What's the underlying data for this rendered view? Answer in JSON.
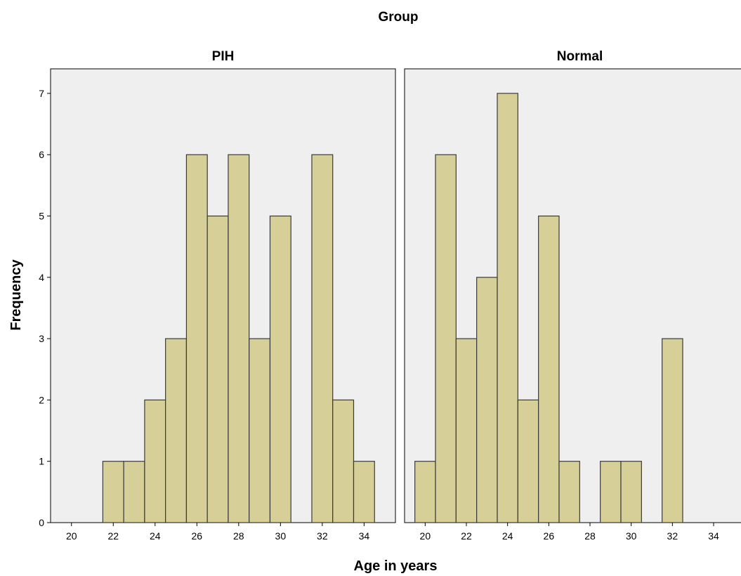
{
  "chart_data": {
    "type": "bar",
    "title": "Group",
    "xlabel": "Age in years",
    "ylabel": "Frequency",
    "xlim": [
      19,
      35.5
    ],
    "ylim": [
      0,
      7.4
    ],
    "x_ticks": [
      "20",
      "22",
      "24",
      "26",
      "28",
      "30",
      "32",
      "34"
    ],
    "y_ticks": [
      "0",
      "1",
      "2",
      "3",
      "4",
      "5",
      "6",
      "7"
    ],
    "grid": false,
    "bar_fill": "#d6cf98",
    "bar_stroke": "#3a3a3a",
    "panel_background": "#efefef",
    "panels": [
      {
        "name": "PIH",
        "bins": [
          {
            "age": 22,
            "frequency": 1
          },
          {
            "age": 23,
            "frequency": 1
          },
          {
            "age": 24,
            "frequency": 2
          },
          {
            "age": 25,
            "frequency": 3
          },
          {
            "age": 26,
            "frequency": 6
          },
          {
            "age": 27,
            "frequency": 5
          },
          {
            "age": 28,
            "frequency": 6
          },
          {
            "age": 29,
            "frequency": 3
          },
          {
            "age": 30,
            "frequency": 5
          },
          {
            "age": 32,
            "frequency": 6
          },
          {
            "age": 33,
            "frequency": 2
          },
          {
            "age": 34,
            "frequency": 1
          }
        ]
      },
      {
        "name": "Normal",
        "bins": [
          {
            "age": 20,
            "frequency": 1
          },
          {
            "age": 21,
            "frequency": 6
          },
          {
            "age": 22,
            "frequency": 3
          },
          {
            "age": 23,
            "frequency": 4
          },
          {
            "age": 24,
            "frequency": 7
          },
          {
            "age": 25,
            "frequency": 2
          },
          {
            "age": 26,
            "frequency": 5
          },
          {
            "age": 27,
            "frequency": 1
          },
          {
            "age": 29,
            "frequency": 1
          },
          {
            "age": 30,
            "frequency": 1
          },
          {
            "age": 32,
            "frequency": 3
          }
        ]
      }
    ]
  }
}
